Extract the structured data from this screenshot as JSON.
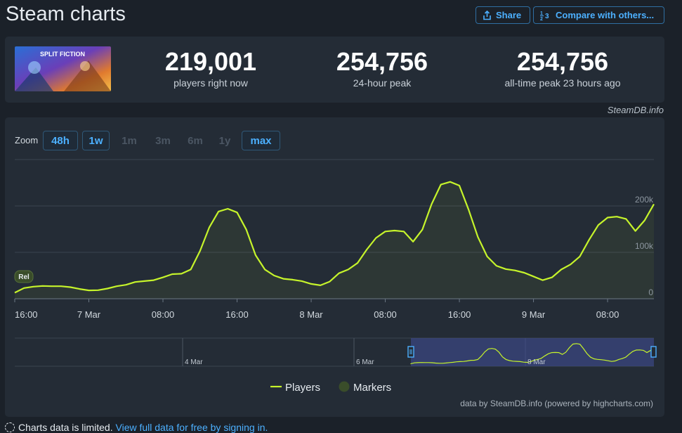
{
  "header": {
    "title": "Steam charts",
    "share_label": "Share",
    "compare_label": "Compare with others..."
  },
  "stats": {
    "game_art_label": "SPLIT FICTION",
    "current": {
      "value": "219,001",
      "label": "players right now"
    },
    "peak24": {
      "value": "254,756",
      "label": "24-hour peak"
    },
    "alltime": {
      "value": "254,756",
      "label": "all-time peak 23 hours ago"
    },
    "credit": "SteamDB.info"
  },
  "zoom": {
    "label": "Zoom",
    "options": [
      {
        "label": "48h",
        "state": "active"
      },
      {
        "label": "1w",
        "state": "active"
      },
      {
        "label": "1m",
        "state": "disabled"
      },
      {
        "label": "3m",
        "state": "disabled"
      },
      {
        "label": "6m",
        "state": "disabled"
      },
      {
        "label": "1y",
        "state": "disabled"
      },
      {
        "label": "max",
        "state": "active"
      }
    ]
  },
  "chart_data": {
    "type": "line",
    "series": [
      {
        "name": "Players",
        "color": "#c6f42b"
      }
    ],
    "x_unit": "hours since 6 Mar 16:00",
    "points": [
      [
        0,
        13000
      ],
      [
        1,
        23000
      ],
      [
        2,
        26000
      ],
      [
        3,
        27500
      ],
      [
        4,
        27000
      ],
      [
        5,
        27000
      ],
      [
        6,
        25000
      ],
      [
        7,
        21000
      ],
      [
        8,
        18000
      ],
      [
        9,
        18500
      ],
      [
        10,
        22000
      ],
      [
        11,
        27000
      ],
      [
        12,
        30000
      ],
      [
        13,
        36000
      ],
      [
        14,
        38000
      ],
      [
        15,
        40000
      ],
      [
        16,
        46000
      ],
      [
        17,
        53000
      ],
      [
        18,
        54000
      ],
      [
        19,
        63000
      ],
      [
        20,
        103000
      ],
      [
        21,
        154000
      ],
      [
        22,
        188000
      ],
      [
        23,
        194000
      ],
      [
        24,
        186000
      ],
      [
        25,
        149000
      ],
      [
        26,
        94000
      ],
      [
        27,
        63000
      ],
      [
        28,
        50000
      ],
      [
        29,
        43000
      ],
      [
        30,
        41000
      ],
      [
        31,
        38000
      ],
      [
        32,
        32000
      ],
      [
        33,
        29000
      ],
      [
        34,
        37000
      ],
      [
        35,
        55000
      ],
      [
        36,
        63000
      ],
      [
        37,
        77000
      ],
      [
        38,
        106000
      ],
      [
        39,
        131000
      ],
      [
        40,
        145000
      ],
      [
        41,
        147000
      ],
      [
        42,
        145000
      ],
      [
        43,
        123000
      ],
      [
        44,
        149000
      ],
      [
        45,
        204000
      ],
      [
        46,
        246000
      ],
      [
        47,
        252000
      ],
      [
        48,
        244000
      ],
      [
        49,
        192000
      ],
      [
        50,
        133000
      ],
      [
        51,
        91000
      ],
      [
        52,
        71000
      ],
      [
        53,
        64000
      ],
      [
        54,
        61000
      ],
      [
        55,
        56000
      ],
      [
        56,
        48000
      ],
      [
        57,
        40000
      ],
      [
        58,
        46000
      ],
      [
        59,
        63000
      ],
      [
        60,
        74000
      ],
      [
        61,
        91000
      ],
      [
        62,
        127000
      ],
      [
        63,
        159000
      ],
      [
        64,
        175000
      ],
      [
        65,
        177000
      ],
      [
        66,
        172000
      ],
      [
        67,
        146000
      ],
      [
        68,
        169000
      ],
      [
        69,
        204000
      ]
    ],
    "x_ticks": [
      {
        "at": 0,
        "label": "16:00"
      },
      {
        "at": 8,
        "label": "7 Mar"
      },
      {
        "at": 16,
        "label": "08:00"
      },
      {
        "at": 24,
        "label": "16:00"
      },
      {
        "at": 32,
        "label": "8 Mar"
      },
      {
        "at": 40,
        "label": "08:00"
      },
      {
        "at": 48,
        "label": "16:00"
      },
      {
        "at": 56,
        "label": "9 Mar"
      },
      {
        "at": 64,
        "label": "08:00"
      }
    ],
    "y_ticks": [
      {
        "value": 0,
        "label": "0"
      },
      {
        "value": 100000,
        "label": "100k"
      },
      {
        "value": 200000,
        "label": "200k"
      }
    ],
    "ylim": [
      0,
      300000
    ],
    "marker": {
      "label": "Rel",
      "at": 1,
      "value": 0
    },
    "navigator": {
      "labels": [
        {
          "label": "4 Mar"
        },
        {
          "label": "6 Mar"
        },
        {
          "label": "8 Mar"
        }
      ],
      "range_start": "6 Mar 16:00",
      "range_end": "9 Mar 13:00"
    },
    "legend": [
      {
        "label": "Players",
        "kind": "line",
        "color": "#c6f42b"
      },
      {
        "label": "Markers",
        "kind": "circle",
        "color": "#3a4d2a"
      }
    ],
    "credit": "data by SteamDB.info (powered by highcharts.com)"
  },
  "footer": {
    "note": "Charts data is limited.",
    "link": "View full data for free by signing in."
  }
}
